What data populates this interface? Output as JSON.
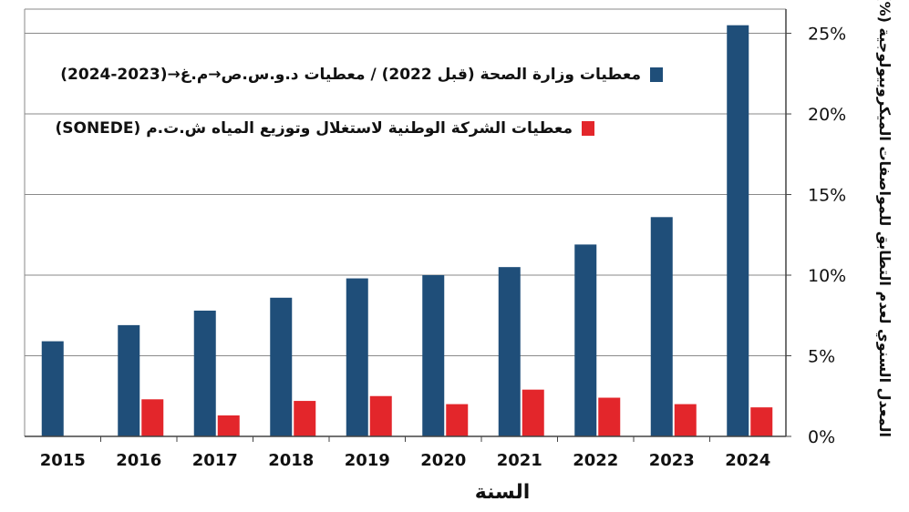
{
  "chart_data": {
    "type": "bar",
    "categories": [
      "2015",
      "2016",
      "2017",
      "2018",
      "2019",
      "2020",
      "2021",
      "2022",
      "2023",
      "2024"
    ],
    "series": [
      {
        "name": "معطيات وزارة الصحة (قبل 2022) / معطيات د.و.س.ص→م.غ→(2023-2024)",
        "color": "#1f4e79",
        "values": [
          5.9,
          6.9,
          7.8,
          8.6,
          9.8,
          10.0,
          10.5,
          11.9,
          13.6,
          25.5
        ]
      },
      {
        "name": "معطيات الشركة الوطنية لاستغلال وتوزيع المياه ش.ت.م (SONEDE)",
        "color": "#e3262b",
        "values": [
          null,
          2.3,
          1.3,
          2.2,
          2.5,
          2.0,
          2.9,
          2.4,
          2.0,
          1.8
        ]
      }
    ],
    "y_ticks": [
      "0%",
      "5%",
      "10%",
      "15%",
      "20%",
      "25%"
    ],
    "ylim": [
      0,
      26.5
    ],
    "xlabel": "السنة",
    "ylabel": "المعدل السنوي لعدم التطابق للمواصفات الميكروبيولوجية (%)",
    "grid": true,
    "y_axis_position": "right",
    "legend_position": "top-left"
  }
}
